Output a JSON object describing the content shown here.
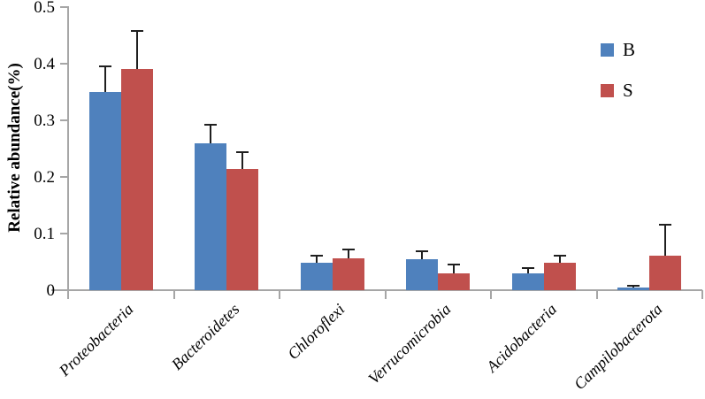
{
  "chart_data": {
    "type": "bar",
    "title": "",
    "xlabel": "",
    "ylabel": "Relative abundance(%)",
    "ylim": [
      0,
      0.5
    ],
    "yticks": [
      "0",
      "0.1",
      "0.2",
      "0.3",
      "0.4",
      "0.5"
    ],
    "ytick_values": [
      0,
      0.1,
      0.2,
      0.3,
      0.4,
      0.5
    ],
    "grid": false,
    "legend_position": "upper-right",
    "categories": [
      "Proteobacteria",
      "Bacteroidetes",
      "Chloroflexi",
      "Verrucomicrobia",
      "Acidobacteria",
      "Campilobacterota"
    ],
    "series": [
      {
        "name": "B",
        "color": "#4F81BD",
        "values": [
          0.35,
          0.26,
          0.048,
          0.055,
          0.03,
          0.004
        ],
        "errors_plus": [
          0.047,
          0.034,
          0.014,
          0.016,
          0.011,
          0.004
        ]
      },
      {
        "name": "S",
        "color": "#C0504D",
        "values": [
          0.39,
          0.214,
          0.056,
          0.029,
          0.049,
          0.061
        ],
        "errors_plus": [
          0.069,
          0.032,
          0.017,
          0.017,
          0.014,
          0.056
        ]
      }
    ],
    "colors": {
      "axis": "#a6a6a6",
      "error_bar": "#1f1f1f",
      "text": "#000000",
      "background": "#ffffff"
    }
  }
}
